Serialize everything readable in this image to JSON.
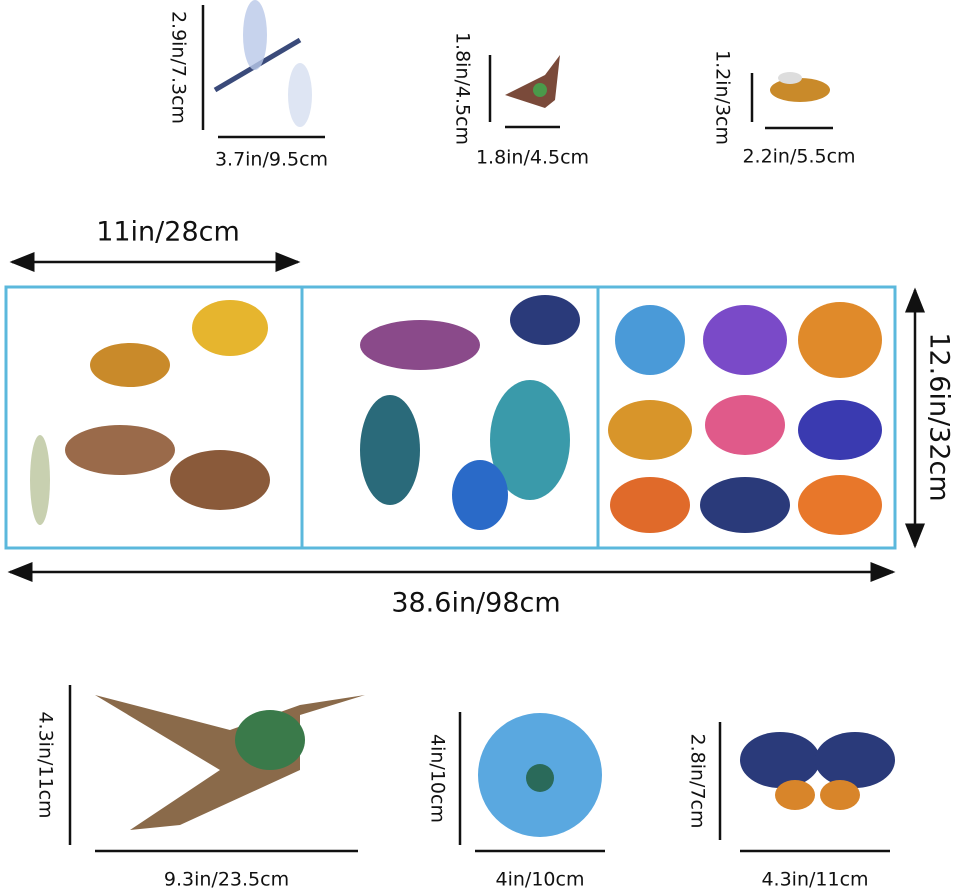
{
  "items_top": [
    {
      "height_label": "2.9in/7.3cm",
      "width_label": "3.7in/9.5cm"
    },
    {
      "height_label": "1.8in/4.5cm",
      "width_label": "1.8in/4.5cm"
    },
    {
      "height_label": "1.2in/3cm",
      "width_label": "2.2in/5.5cm"
    }
  ],
  "sheet": {
    "panel_width_label": "11in/28cm",
    "height_label": "12.6in/32cm",
    "width_label": "38.6in/98cm"
  },
  "items_bottom": [
    {
      "height_label": "4.3in/11cm",
      "width_label": "9.3in/23.5cm"
    },
    {
      "height_label": "4in/10cm",
      "width_label": "4in/10cm"
    },
    {
      "height_label": "2.8in/7cm",
      "width_label": "4.3in/11cm"
    }
  ]
}
